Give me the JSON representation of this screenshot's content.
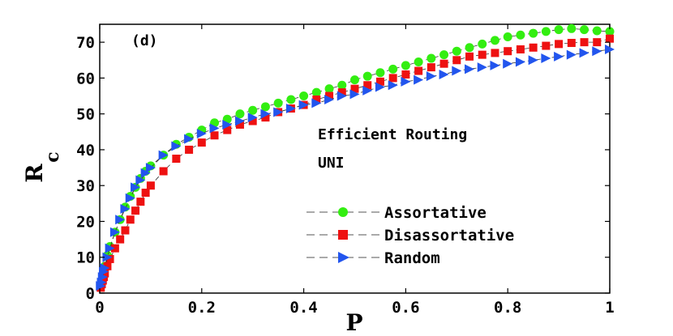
{
  "chart_data": {
    "type": "scatter",
    "panel_label": "(d)",
    "annotations": [
      "Efficient Routing",
      "UNI"
    ],
    "xlabel": "P",
    "ylabel_main": "R",
    "ylabel_sub": "c",
    "xlim": [
      0,
      1
    ],
    "ylim": [
      0,
      75
    ],
    "xticks": [
      0,
      0.2,
      0.4,
      0.6,
      0.8,
      1
    ],
    "xtick_labels": [
      "0",
      "0.2",
      "0.4",
      "0.6",
      "0.8",
      "1"
    ],
    "yticks": [
      0,
      10,
      20,
      30,
      40,
      50,
      60,
      70
    ],
    "ytick_labels": [
      "0",
      "10",
      "20",
      "30",
      "40",
      "50",
      "60",
      "70"
    ],
    "legend_position": "bottom-right",
    "grid": false,
    "series": [
      {
        "name": "Assortative",
        "marker": "circle",
        "color": "#33ee11",
        "x": [
          0.002,
          0.004,
          0.006,
          0.008,
          0.01,
          0.015,
          0.02,
          0.03,
          0.04,
          0.05,
          0.06,
          0.07,
          0.08,
          0.09,
          0.1,
          0.125,
          0.15,
          0.175,
          0.2,
          0.225,
          0.25,
          0.275,
          0.3,
          0.325,
          0.35,
          0.375,
          0.4,
          0.425,
          0.45,
          0.475,
          0.5,
          0.525,
          0.55,
          0.575,
          0.6,
          0.625,
          0.65,
          0.675,
          0.7,
          0.725,
          0.75,
          0.775,
          0.8,
          0.825,
          0.85,
          0.875,
          0.9,
          0.925,
          0.95,
          0.975,
          1.0
        ],
        "y": [
          2,
          3.5,
          4.8,
          6,
          7.5,
          10.5,
          13,
          17,
          20.5,
          24,
          27,
          29.5,
          32,
          34,
          35.5,
          38.5,
          41.5,
          43.5,
          45.5,
          47.5,
          48.5,
          50,
          51,
          52,
          53,
          54,
          55,
          56,
          57,
          58,
          59.5,
          60.5,
          61.5,
          62.5,
          63.5,
          64.5,
          65.5,
          66.5,
          67.5,
          68.5,
          69.5,
          70.5,
          71.5,
          72,
          72.5,
          73,
          73.5,
          73.8,
          73.5,
          73.2,
          73
        ]
      },
      {
        "name": "Disassortative",
        "marker": "square",
        "color": "#ee1111",
        "x": [
          0.002,
          0.004,
          0.006,
          0.008,
          0.01,
          0.015,
          0.02,
          0.03,
          0.04,
          0.05,
          0.06,
          0.07,
          0.08,
          0.09,
          0.1,
          0.125,
          0.15,
          0.175,
          0.2,
          0.225,
          0.25,
          0.275,
          0.3,
          0.325,
          0.35,
          0.375,
          0.4,
          0.425,
          0.45,
          0.475,
          0.5,
          0.525,
          0.55,
          0.575,
          0.6,
          0.625,
          0.65,
          0.675,
          0.7,
          0.725,
          0.75,
          0.775,
          0.8,
          0.825,
          0.85,
          0.875,
          0.9,
          0.925,
          0.95,
          0.975,
          1.0
        ],
        "y": [
          1.5,
          2.5,
          3.5,
          4.5,
          5.5,
          7.5,
          9.5,
          12.5,
          15,
          17.5,
          20.5,
          23,
          25.5,
          28,
          30,
          34,
          37.5,
          40,
          42,
          44,
          45.5,
          47,
          48,
          49,
          50.5,
          51.5,
          52.5,
          54,
          55,
          56,
          57,
          58,
          59,
          60,
          61,
          62,
          63,
          64,
          65,
          66,
          66.5,
          67,
          67.5,
          68,
          68.5,
          69,
          69.5,
          69.8,
          70,
          70,
          71
        ]
      },
      {
        "name": "Random",
        "marker": "triangle-right",
        "color": "#2255ee",
        "x": [
          0.002,
          0.004,
          0.006,
          0.008,
          0.01,
          0.015,
          0.02,
          0.03,
          0.04,
          0.05,
          0.06,
          0.07,
          0.08,
          0.09,
          0.1,
          0.125,
          0.15,
          0.175,
          0.2,
          0.225,
          0.25,
          0.275,
          0.3,
          0.325,
          0.35,
          0.375,
          0.4,
          0.425,
          0.45,
          0.475,
          0.5,
          0.525,
          0.55,
          0.575,
          0.6,
          0.625,
          0.65,
          0.675,
          0.7,
          0.725,
          0.75,
          0.775,
          0.8,
          0.825,
          0.85,
          0.875,
          0.9,
          0.925,
          0.95,
          0.975,
          1.0
        ],
        "y": [
          2,
          3,
          4.5,
          6,
          7,
          10,
          12.5,
          17,
          20.5,
          23.5,
          26.5,
          29.5,
          31.5,
          33.5,
          35,
          38.5,
          41,
          43,
          44.5,
          46,
          47,
          48,
          49,
          50,
          50.5,
          51.5,
          52.5,
          53,
          54,
          55,
          55.5,
          56.5,
          57.5,
          58,
          59,
          59.5,
          60.5,
          61,
          62,
          62.5,
          63,
          63.5,
          64,
          64.5,
          65,
          65.5,
          66,
          66.5,
          67,
          67.5,
          68
        ]
      }
    ]
  }
}
